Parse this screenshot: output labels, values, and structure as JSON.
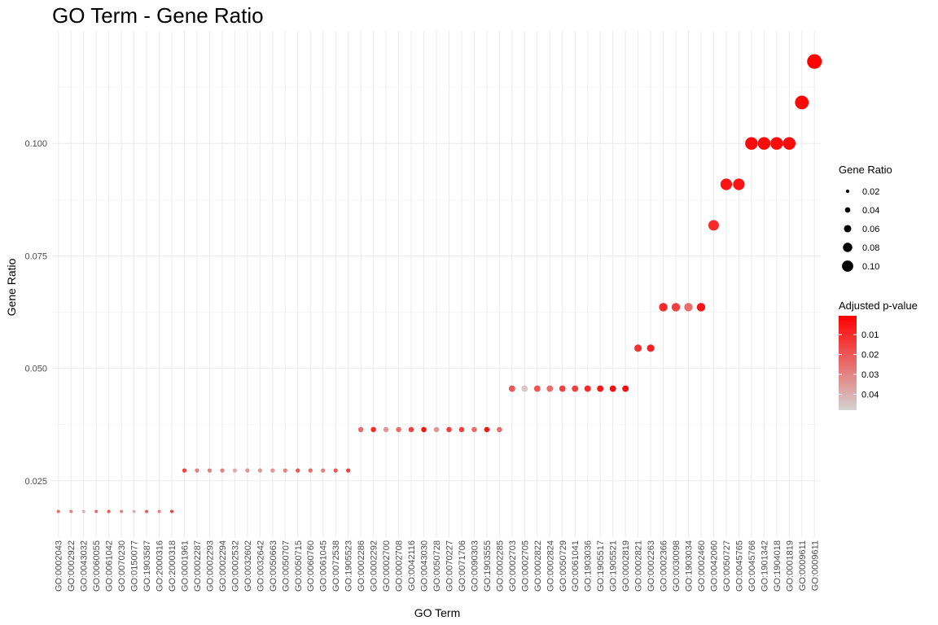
{
  "chart_data": {
    "type": "scatter",
    "title": "GO Term - Gene Ratio",
    "xlabel": "GO Term",
    "ylabel": "Gene Ratio",
    "ylim": [
      0.0125,
      0.125
    ],
    "yticks": [
      0.025,
      0.05,
      0.075,
      0.1
    ],
    "ytick_labels": [
      "0.025",
      "0.050",
      "0.075",
      "0.100"
    ],
    "grid": true,
    "color_scale": {
      "low": "#d3d3d3",
      "high": "#ff0000"
    },
    "legend_placement": "right",
    "size_legend": {
      "title": "Gene Ratio",
      "labels": [
        "0.02",
        "0.04",
        "0.06",
        "0.08",
        "0.10"
      ],
      "values": [
        0.02,
        0.04,
        0.06,
        0.08,
        0.1
      ]
    },
    "color_legend": {
      "title": "Adjusted p-value",
      "labels": [
        "0.01",
        "0.02",
        "0.03",
        "0.04"
      ],
      "values": [
        0.01,
        0.02,
        0.03,
        0.04
      ],
      "range": [
        0.0005,
        0.048
      ]
    },
    "points": [
      {
        "term": "GO:0002043",
        "ratio": 0.0182,
        "padj": 0.025
      },
      {
        "term": "GO:0002922",
        "ratio": 0.0182,
        "padj": 0.03
      },
      {
        "term": "GO:0043032",
        "ratio": 0.0182,
        "padj": 0.04
      },
      {
        "term": "GO:0060055",
        "ratio": 0.0182,
        "padj": 0.025
      },
      {
        "term": "GO:0061042",
        "ratio": 0.0182,
        "padj": 0.02
      },
      {
        "term": "GO:0070230",
        "ratio": 0.0182,
        "padj": 0.03
      },
      {
        "term": "GO:0150077",
        "ratio": 0.0182,
        "padj": 0.04
      },
      {
        "term": "GO:1903587",
        "ratio": 0.0182,
        "padj": 0.02
      },
      {
        "term": "GO:2000316",
        "ratio": 0.0182,
        "padj": 0.03
      },
      {
        "term": "GO:2000318",
        "ratio": 0.0182,
        "padj": 0.015
      },
      {
        "term": "GO:0001961",
        "ratio": 0.0273,
        "padj": 0.015
      },
      {
        "term": "GO:0002287",
        "ratio": 0.0273,
        "padj": 0.03
      },
      {
        "term": "GO:0002293",
        "ratio": 0.0273,
        "padj": 0.03
      },
      {
        "term": "GO:0002294",
        "ratio": 0.0273,
        "padj": 0.03
      },
      {
        "term": "GO:0002532",
        "ratio": 0.0273,
        "padj": 0.04
      },
      {
        "term": "GO:0032602",
        "ratio": 0.0273,
        "padj": 0.035
      },
      {
        "term": "GO:0032642",
        "ratio": 0.0273,
        "padj": 0.035
      },
      {
        "term": "GO:0050663",
        "ratio": 0.0273,
        "padj": 0.035
      },
      {
        "term": "GO:0050707",
        "ratio": 0.0273,
        "padj": 0.03
      },
      {
        "term": "GO:0050715",
        "ratio": 0.0273,
        "padj": 0.02
      },
      {
        "term": "GO:0060760",
        "ratio": 0.0273,
        "padj": 0.025
      },
      {
        "term": "GO:0061045",
        "ratio": 0.0273,
        "padj": 0.03
      },
      {
        "term": "GO:0072538",
        "ratio": 0.0273,
        "padj": 0.02
      },
      {
        "term": "GO:1905523",
        "ratio": 0.0273,
        "padj": 0.015
      },
      {
        "term": "GO:0002286",
        "ratio": 0.0364,
        "padj": 0.025
      },
      {
        "term": "GO:0002292",
        "ratio": 0.0364,
        "padj": 0.01
      },
      {
        "term": "GO:0002700",
        "ratio": 0.0364,
        "padj": 0.035
      },
      {
        "term": "GO:0002708",
        "ratio": 0.0364,
        "padj": 0.025
      },
      {
        "term": "GO:0042116",
        "ratio": 0.0364,
        "padj": 0.015
      },
      {
        "term": "GO:0043030",
        "ratio": 0.0364,
        "padj": 0.005
      },
      {
        "term": "GO:0050728",
        "ratio": 0.0364,
        "padj": 0.035
      },
      {
        "term": "GO:0070227",
        "ratio": 0.0364,
        "padj": 0.015
      },
      {
        "term": "GO:0071706",
        "ratio": 0.0364,
        "padj": 0.015
      },
      {
        "term": "GO:0090303",
        "ratio": 0.0364,
        "padj": 0.025
      },
      {
        "term": "GO:1903555",
        "ratio": 0.0364,
        "padj": 0.005
      },
      {
        "term": "GO:0002285",
        "ratio": 0.0364,
        "padj": 0.025
      },
      {
        "term": "GO:0002703",
        "ratio": 0.0455,
        "padj": 0.02
      },
      {
        "term": "GO:0002705",
        "ratio": 0.0455,
        "padj": 0.045
      },
      {
        "term": "GO:0002822",
        "ratio": 0.0455,
        "padj": 0.02
      },
      {
        "term": "GO:0002824",
        "ratio": 0.0455,
        "padj": 0.025
      },
      {
        "term": "GO:0050729",
        "ratio": 0.0455,
        "padj": 0.015
      },
      {
        "term": "GO:0061041",
        "ratio": 0.0455,
        "padj": 0.015
      },
      {
        "term": "GO:1903036",
        "ratio": 0.0455,
        "padj": 0.01
      },
      {
        "term": "GO:1905517",
        "ratio": 0.0455,
        "padj": 0.005
      },
      {
        "term": "GO:1905521",
        "ratio": 0.0455,
        "padj": 0.003
      },
      {
        "term": "GO:0002819",
        "ratio": 0.0455,
        "padj": 0.003
      },
      {
        "term": "GO:0002821",
        "ratio": 0.0545,
        "padj": 0.012
      },
      {
        "term": "GO:0002263",
        "ratio": 0.0545,
        "padj": 0.008
      },
      {
        "term": "GO:0002366",
        "ratio": 0.0636,
        "padj": 0.01
      },
      {
        "term": "GO:0030098",
        "ratio": 0.0636,
        "padj": 0.015
      },
      {
        "term": "GO:1903034",
        "ratio": 0.0636,
        "padj": 0.025
      },
      {
        "term": "GO:0002460",
        "ratio": 0.0636,
        "padj": 0.005
      },
      {
        "term": "GO:0042060",
        "ratio": 0.0818,
        "padj": 0.01
      },
      {
        "term": "GO:0050727",
        "ratio": 0.0909,
        "padj": 0.005
      },
      {
        "term": "GO:0045765",
        "ratio": 0.0909,
        "padj": 0.005
      },
      {
        "term": "GO:0045766",
        "ratio": 0.1,
        "padj": 0.003
      },
      {
        "term": "GO:1901342",
        "ratio": 0.1,
        "padj": 0.003
      },
      {
        "term": "GO:1904018",
        "ratio": 0.1,
        "padj": 0.003
      },
      {
        "term": "GO:0001819",
        "ratio": 0.1,
        "padj": 0.003
      },
      {
        "term": "GO:0009611",
        "ratio": 0.1091,
        "padj": 0.002
      },
      {
        "term": "GO:0009611b",
        "ratio": 0.1182,
        "padj": 0.001
      }
    ]
  }
}
